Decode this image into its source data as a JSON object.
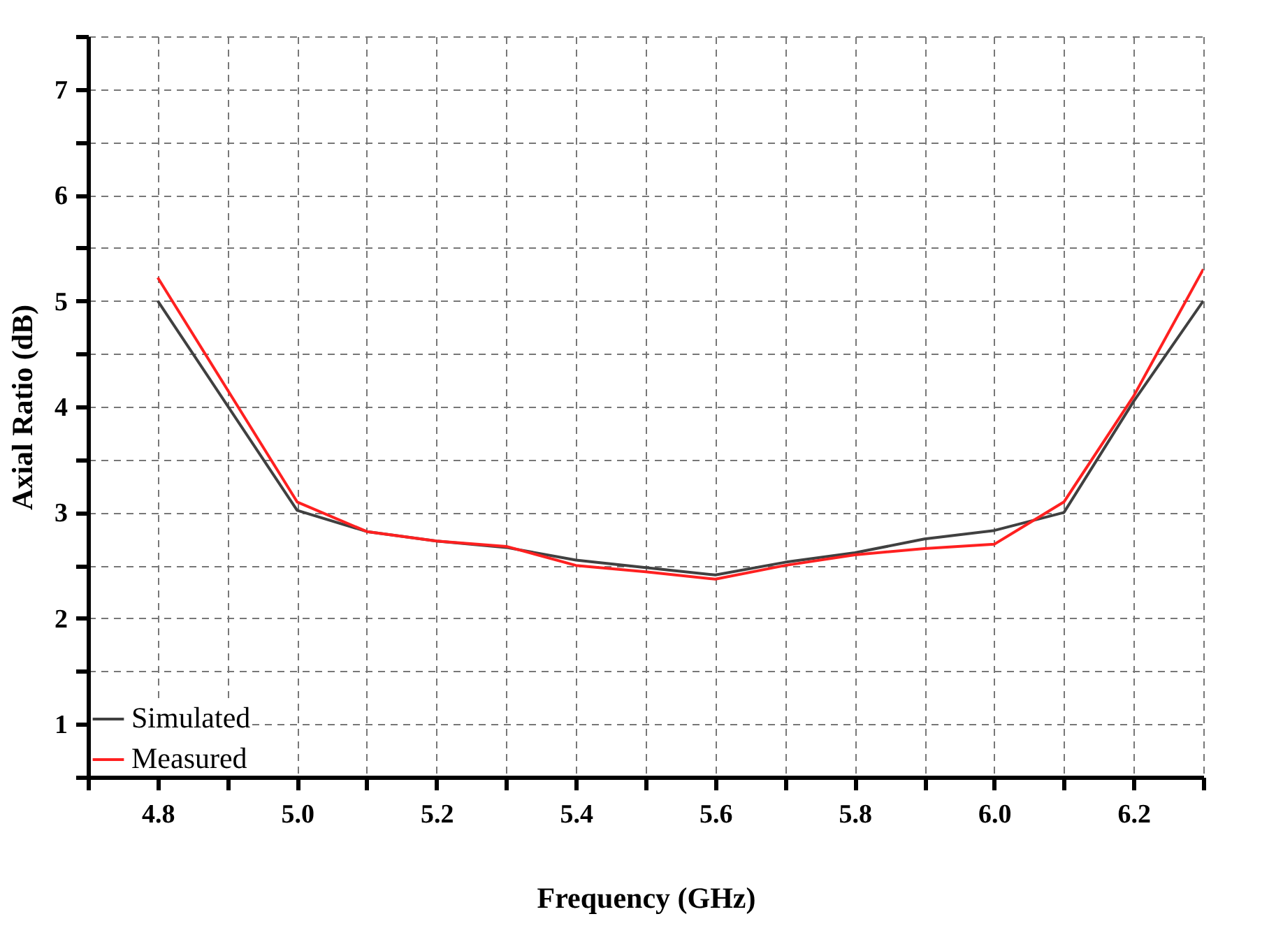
{
  "chart_data": {
    "type": "line",
    "xlabel": "Frequency (GHz)",
    "ylabel": "Axial Ratio (dB)",
    "x": [
      4.8,
      5.0,
      5.1,
      5.2,
      5.3,
      5.4,
      5.5,
      5.6,
      5.7,
      5.8,
      5.9,
      6.0,
      6.1,
      6.2,
      6.3
    ],
    "series": [
      {
        "name": "Simulated",
        "color": "#404040",
        "values": [
          5.0,
          3.02,
          2.82,
          2.73,
          2.67,
          2.55,
          2.48,
          2.41,
          2.53,
          2.62,
          2.75,
          2.83,
          3.0,
          4.05,
          5.0
        ]
      },
      {
        "name": "Measured",
        "color": "#ff2020",
        "values": [
          5.22,
          3.1,
          2.82,
          2.73,
          2.68,
          2.5,
          2.44,
          2.37,
          2.5,
          2.6,
          2.66,
          2.7,
          3.1,
          4.1,
          5.3
        ]
      }
    ],
    "xlim": [
      4.7,
      6.3
    ],
    "xticks": [
      {
        "value": 4.7,
        "label": null
      },
      4.8,
      {
        "value": 4.9,
        "label": null
      },
      {
        "value": 5.0,
        "label": "5.0"
      },
      {
        "value": 5.1,
        "label": null
      },
      5.2,
      {
        "value": 5.3,
        "label": null
      },
      5.4,
      {
        "value": 5.5,
        "label": null
      },
      5.6,
      {
        "value": 5.7,
        "label": null
      },
      5.8,
      {
        "value": 5.9,
        "label": null
      },
      {
        "value": 6.0,
        "label": "6.0"
      },
      {
        "value": 6.1,
        "label": null
      },
      6.2,
      {
        "value": 6.3,
        "label": null
      }
    ],
    "ylim": [
      0.5,
      7.5
    ],
    "yticks": [
      {
        "value": 0.5,
        "label": null
      },
      1,
      {
        "value": 1.5,
        "label": null
      },
      2,
      {
        "value": 2.5,
        "label": null
      },
      3,
      {
        "value": 3.5,
        "label": null
      },
      4,
      {
        "value": 4.5,
        "label": null
      },
      5,
      {
        "value": 5.5,
        "label": null
      },
      6,
      {
        "value": 6.5,
        "label": null
      },
      7,
      {
        "value": 7.5,
        "label": null
      }
    ],
    "grid": true,
    "legend": "bottom left",
    "line_style": "solid",
    "marker": "none"
  }
}
